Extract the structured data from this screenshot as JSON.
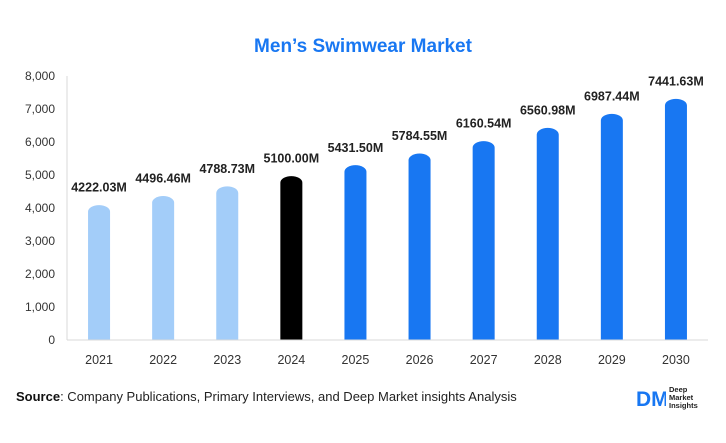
{
  "chart_data": {
    "type": "bar",
    "title": "Men’s Swimwear Market",
    "categories": [
      "2021",
      "2022",
      "2023",
      "2024",
      "2025",
      "2026",
      "2027",
      "2028",
      "2029",
      "2030"
    ],
    "values": [
      4222.03,
      4496.46,
      4788.73,
      5100.0,
      5431.5,
      5784.55,
      6160.54,
      6560.98,
      6987.44,
      7441.63
    ],
    "data_labels": [
      "4222.03M",
      "4496.46M",
      "4788.73M",
      "5100.00M",
      "5431.50M",
      "5784.55M",
      "6160.54M",
      "6560.98M",
      "6987.44M",
      "7441.63M"
    ],
    "yticks": [
      "0",
      "1,000",
      "2,000",
      "3,000",
      "4,000",
      "5,000",
      "6,000",
      "7,000",
      "8,000"
    ],
    "ylim": [
      0,
      8000
    ],
    "xlabel": "",
    "ylabel": "",
    "grid": false,
    "colors": {
      "historical": "#a3cdf9",
      "base_year": "#000000",
      "forecast": "#1877f2"
    },
    "bar_color_groups": [
      "historical",
      "historical",
      "historical",
      "base_year",
      "forecast",
      "forecast",
      "forecast",
      "forecast",
      "forecast",
      "forecast"
    ]
  },
  "source": {
    "label": "Source",
    "text": ": Company Publications, Primary Interviews, and Deep Market insights Analysis"
  },
  "brand": {
    "logo_letters": "DM",
    "line1": "Deep",
    "line2": "Market",
    "line3": "Insights",
    "logo_color": "#1877f2"
  }
}
